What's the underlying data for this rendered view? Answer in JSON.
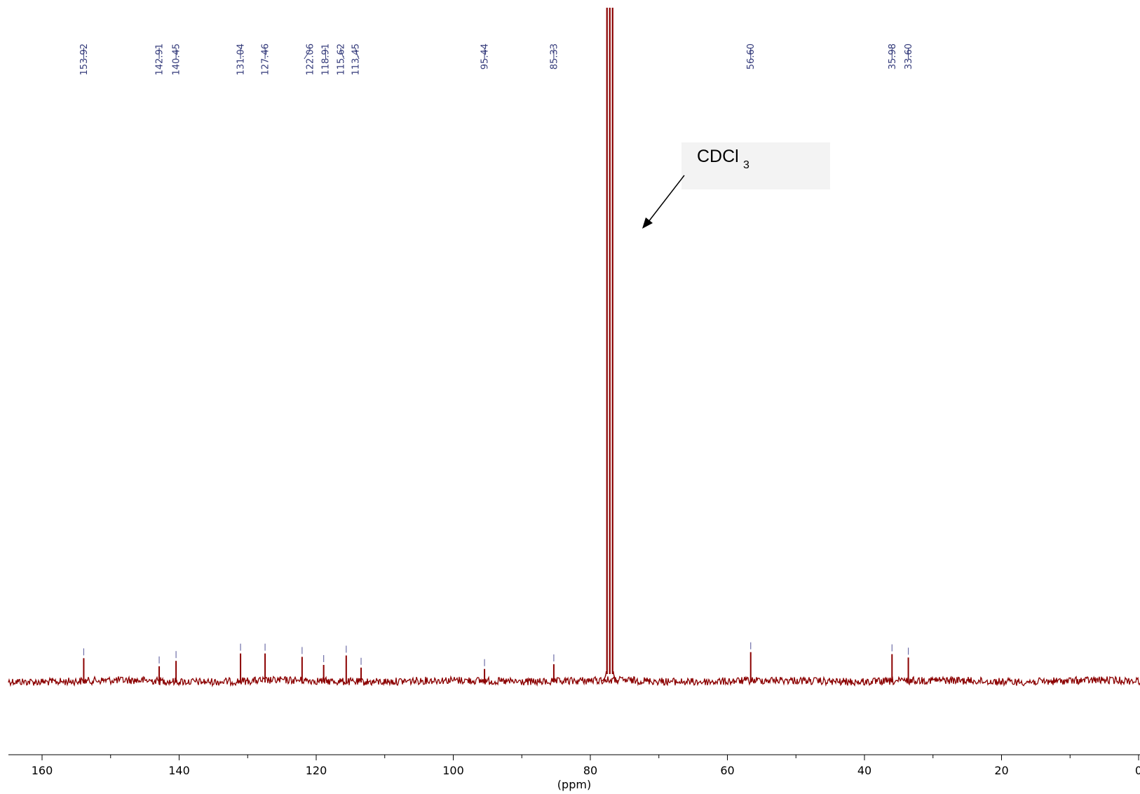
{
  "chart_data": {
    "type": "line",
    "title": "",
    "xlabel": "(ppm)",
    "ylabel": "",
    "x_range": [
      164,
      0
    ],
    "x_reversed": true,
    "x_ticks": [
      160,
      140,
      120,
      100,
      80,
      60,
      40,
      20,
      0
    ],
    "x_minor_step": 10,
    "grid": false,
    "line_color": "#8b0000",
    "label_color": "#333a7a",
    "baseline_y": 0,
    "y_range": [
      -5,
      100
    ],
    "solvent_peak": {
      "ppm": 77.16,
      "height": 100,
      "label": "CDCl",
      "subscript": "3"
    },
    "peaks": [
      {
        "ppm": 153.92,
        "label": "153.92",
        "height": 3.4
      },
      {
        "ppm": 142.91,
        "label": "142.91",
        "height": 2.2
      },
      {
        "ppm": 140.45,
        "label": "140.45",
        "height": 3.0
      },
      {
        "ppm": 131.04,
        "label": "131.04",
        "height": 4.1
      },
      {
        "ppm": 127.46,
        "label": "127.46",
        "height": 4.1
      },
      {
        "ppm": 122.06,
        "label": "122.06",
        "height": 3.6
      },
      {
        "ppm": 118.91,
        "label": "118.91",
        "height": 2.4
      },
      {
        "ppm": 115.62,
        "label": "115.62",
        "height": 3.8
      },
      {
        "ppm": 113.45,
        "label": "113.45",
        "height": 2.0
      },
      {
        "ppm": 95.44,
        "label": "95.44",
        "height": 1.8
      },
      {
        "ppm": 85.33,
        "label": "85.33",
        "height": 2.5
      },
      {
        "ppm": 56.6,
        "label": "56.60",
        "height": 4.3
      },
      {
        "ppm": 35.98,
        "label": "35.98",
        "height": 4.0
      },
      {
        "ppm": 33.6,
        "label": "33.60",
        "height": 3.5
      }
    ]
  }
}
